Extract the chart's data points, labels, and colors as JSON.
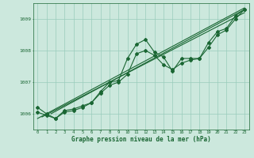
{
  "bg_color": "#cce8dd",
  "grid_color": "#99ccbb",
  "line_color": "#1a6633",
  "xlim": [
    -0.5,
    23.5
  ],
  "ylim": [
    1005.5,
    1009.5
  ],
  "yticks": [
    1006,
    1007,
    1008,
    1009
  ],
  "xticks": [
    0,
    1,
    2,
    3,
    4,
    5,
    6,
    7,
    8,
    9,
    10,
    11,
    12,
    13,
    14,
    15,
    16,
    17,
    18,
    19,
    20,
    21,
    22,
    23
  ],
  "xlabel": "Graphe pression niveau de la mer (hPa)",
  "series1": [
    1006.2,
    1006.0,
    1005.85,
    1006.1,
    1006.15,
    1006.25,
    1006.35,
    1006.7,
    1007.0,
    1007.05,
    1007.75,
    1008.2,
    1008.35,
    1007.95,
    1007.8,
    1007.35,
    1007.75,
    1007.75,
    1007.75,
    1008.25,
    1008.6,
    1008.7,
    1009.1,
    1009.3
  ],
  "series2": [
    1006.05,
    1005.95,
    1005.85,
    1006.05,
    1006.1,
    1006.2,
    1006.35,
    1006.65,
    1006.9,
    1007.0,
    1007.25,
    1007.9,
    1008.0,
    1007.85,
    1007.55,
    1007.4,
    1007.6,
    1007.7,
    1007.75,
    1008.1,
    1008.5,
    1008.65,
    1009.0,
    1009.3
  ],
  "trend1_x": [
    0.0,
    23.0
  ],
  "trend1_y": [
    1005.85,
    1009.35
  ],
  "trend2_x": [
    1.5,
    23.0
  ],
  "trend2_y": [
    1006.0,
    1009.3
  ],
  "trend3_x": [
    0.5,
    23.0
  ],
  "trend3_y": [
    1005.9,
    1009.2
  ]
}
